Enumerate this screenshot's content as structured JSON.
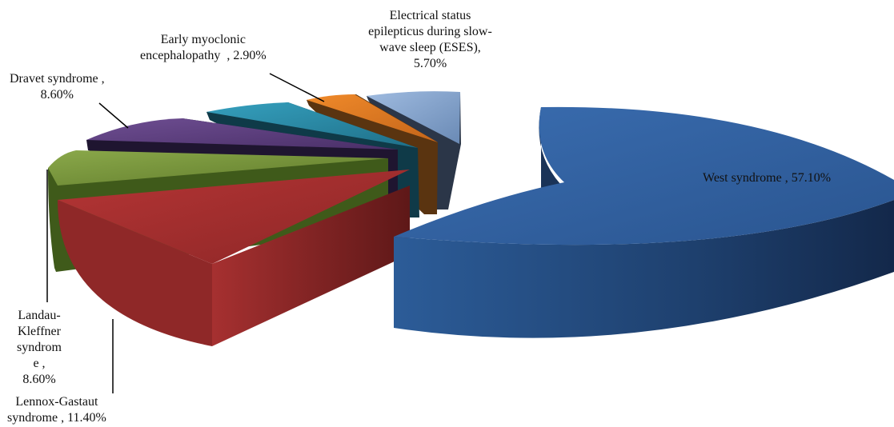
{
  "chart_data": {
    "type": "pie",
    "style": "3d-exploded",
    "slices": [
      {
        "label": "West syndrome",
        "value": 57.1,
        "display": "West syndrome , 57.10%",
        "color": "#2e5b94"
      },
      {
        "label": "Lennox-Gastaut syndrome",
        "value": 11.4,
        "display": "Lennox-Gastaut\nsyndrome , 11.40%",
        "color": "#9b2b2b"
      },
      {
        "label": "Landau-Kleffner syndrome",
        "value": 8.6,
        "display": "Landau-\nKleffner\nsyndrom\ne ,\n8.60%",
        "color": "#76913a"
      },
      {
        "label": "Dravet syndrome",
        "value": 8.6,
        "display": "Dravet syndrome ,\n8.60%",
        "color": "#5d3f7c"
      },
      {
        "label": "Unlabeled (teal slice)",
        "value": 5.7,
        "display": "",
        "color": "#2a8aa6"
      },
      {
        "label": "Early myoclonic encephalopathy",
        "value": 2.9,
        "display": "Early myoclonic\nencephalopathy  , 2.90%",
        "color": "#d9761e"
      },
      {
        "label": "Electrical status epilepticus during slow-wave sleep (ESES)",
        "value": 5.7,
        "display": "Electrical status\nepilepticus during slow-\nwave sleep (ESES),\n5.70%",
        "color": "#7f9fc8"
      }
    ]
  }
}
